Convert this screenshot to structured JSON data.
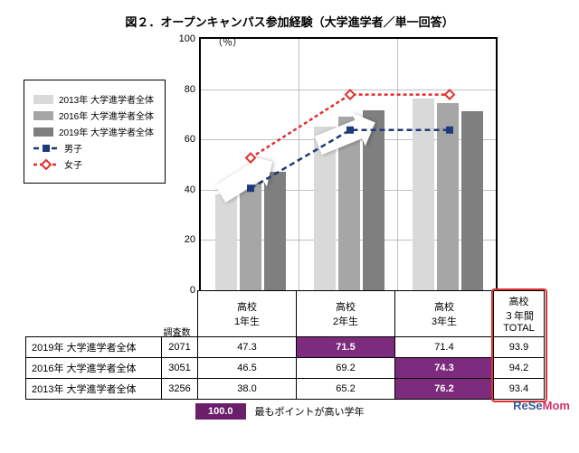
{
  "title": "図２．オープンキャンパス参加経験（大学進学者／単一回答）",
  "ylabel": "（％）",
  "chart": {
    "ylim": [
      0,
      100
    ],
    "ytick_step": 20,
    "categories": [
      "高校\n1年生",
      "高校\n2年生",
      "高校\n3年生"
    ],
    "bar_series": [
      {
        "label": "2013年 大学進学者全体",
        "color": "#d9d9d9",
        "values": [
          38.0,
          65.2,
          76.2
        ]
      },
      {
        "label": "2016年 大学進学者全体",
        "color": "#a6a6a6",
        "values": [
          46.5,
          69.2,
          74.3
        ]
      },
      {
        "label": "2019年 大学進学者全体",
        "color": "#7f7f7f",
        "values": [
          47.3,
          71.5,
          71.4
        ]
      }
    ],
    "line_series": [
      {
        "label": "男子",
        "color": "#1f3a7a",
        "dash": "6,4",
        "marker": "square",
        "values": [
          41,
          64,
          64
        ]
      },
      {
        "label": "女子",
        "color": "#e03030",
        "dash": "4,3",
        "marker": "diamond-open",
        "values": [
          53,
          78,
          78
        ]
      }
    ],
    "background_color": "#ffffff",
    "grid_color": "#c0c0c0"
  },
  "table": {
    "survey_count_label": "調査数",
    "category_headers": [
      "高校\n1年生",
      "高校\n2年生",
      "高校\n3年生"
    ],
    "total_header": "高校\n３年間\nTOTAL",
    "rows": [
      {
        "label": "2019年 大学進学者全体",
        "n": 2071,
        "values": [
          47.3,
          71.5,
          71.4
        ],
        "total": 93.9,
        "highlight_col": 1
      },
      {
        "label": "2016年 大学進学者全体",
        "n": 3051,
        "values": [
          46.5,
          69.2,
          74.3
        ],
        "total": 94.2,
        "highlight_col": 2
      },
      {
        "label": "2013年 大学進学者全体",
        "n": 3256,
        "values": [
          38.0,
          65.2,
          76.2
        ],
        "total": 93.4,
        "highlight_col": 2
      }
    ],
    "highlight_bg": "#7d2b7d",
    "highlight_fg": "#ffffff"
  },
  "footer": {
    "badge_value": "100.0",
    "badge_bg": "#6b1f6b",
    "note": "最もポイントが高い学年"
  },
  "watermark": {
    "part1": "ReSe",
    "part2": "Mom"
  }
}
